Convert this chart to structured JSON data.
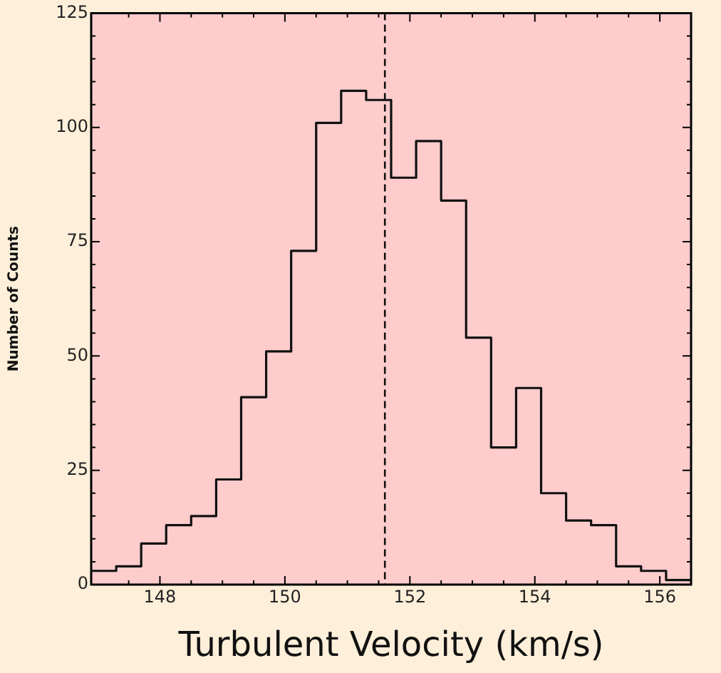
{
  "chart_data": {
    "type": "step",
    "xlabel": "Turbulent Velocity (km/s)",
    "ylabel": "Number of Counts",
    "x": [
      146.9,
      147.3,
      147.7,
      148.1,
      148.5,
      148.9,
      149.3,
      149.7,
      150.1,
      150.5,
      150.9,
      151.3,
      151.7,
      152.1,
      152.5,
      152.9,
      153.3,
      153.7,
      154.1,
      154.5,
      154.9,
      155.3,
      155.7,
      156.1,
      156.5
    ],
    "values": [
      3,
      4,
      9,
      13,
      15,
      23,
      41,
      51,
      73,
      101,
      108,
      106,
      89,
      97,
      84,
      54,
      30,
      43,
      20,
      14,
      13,
      4,
      3,
      1,
      1
    ],
    "color": "#111111",
    "xlim": [
      146.9,
      156.5
    ],
    "xticks": [
      {
        "value": 147.5,
        "label": null
      },
      148,
      {
        "value": 148.5,
        "label": null
      },
      {
        "value": 149,
        "label": null
      },
      {
        "value": 149.5,
        "label": null
      },
      150,
      {
        "value": 150.5,
        "label": null
      },
      {
        "value": 151,
        "label": null
      },
      {
        "value": 151.5,
        "label": null
      },
      152,
      {
        "value": 152.5,
        "label": null
      },
      {
        "value": 153,
        "label": null
      },
      {
        "value": 153.5,
        "label": null
      },
      154,
      {
        "value": 154.5,
        "label": null
      },
      {
        "value": 155,
        "label": null
      },
      {
        "value": 155.5,
        "label": null
      },
      156
    ],
    "ylim": [
      0,
      125
    ],
    "yticks": [
      0,
      {
        "value": 5,
        "label": null
      },
      {
        "value": 10,
        "label": null
      },
      {
        "value": 15,
        "label": null
      },
      {
        "value": 20,
        "label": null
      },
      25,
      {
        "value": 30,
        "label": null
      },
      {
        "value": 35,
        "label": null
      },
      {
        "value": 40,
        "label": null
      },
      {
        "value": 45,
        "label": null
      },
      50,
      {
        "value": 55,
        "label": null
      },
      {
        "value": 60,
        "label": null
      },
      {
        "value": 65,
        "label": null
      },
      {
        "value": 70,
        "label": null
      },
      75,
      {
        "value": 80,
        "label": null
      },
      {
        "value": 85,
        "label": null
      },
      {
        "value": 90,
        "label": null
      },
      {
        "value": 95,
        "label": null
      },
      100,
      {
        "value": 105,
        "label": null
      },
      {
        "value": 110,
        "label": null
      },
      {
        "value": 115,
        "label": null
      },
      {
        "value": 120,
        "label": null
      },
      125
    ],
    "ref_lines": [
      {
        "axis": "x",
        "value": 151.6,
        "color": "#111111",
        "line_style": "dashed"
      }
    ],
    "marker": "none",
    "legend": false
  }
}
